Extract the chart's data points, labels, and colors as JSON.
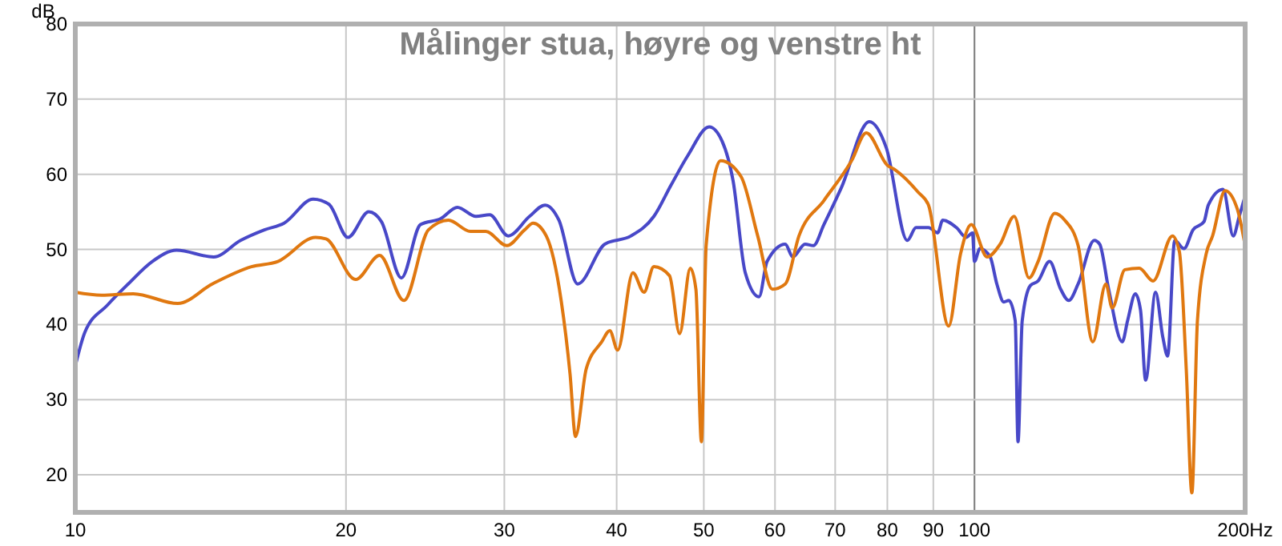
{
  "chart_data": {
    "type": "line",
    "title": "Målinger stua, høyre og venstre ht",
    "ylabel": "dB",
    "log": "x",
    "grid": true,
    "ref_lines": [
      {
        "axis": "x",
        "value": 100,
        "color": "#808080"
      }
    ],
    "marker": "none",
    "line_style": "solid",
    "xlim": [
      10,
      200
    ],
    "xticks": [
      10,
      20,
      30,
      40,
      50,
      60,
      70,
      80,
      90,
      100,
      {
        "value": 200,
        "label": "200Hz"
      }
    ],
    "ylim": [
      15,
      80
    ],
    "yticks": [
      20,
      30,
      40,
      50,
      60,
      70,
      80
    ],
    "series": [
      {
        "color": "#4848c8",
        "x": [
          10,
          10.25,
          10.86,
          11.45,
          12.18,
          12.96,
          14.25,
          15.27,
          16.23,
          17.07,
          18.39,
          19.15,
          20.1,
          21.2,
          21.9,
          23.05,
          24.2,
          25.5,
          26.6,
          27.9,
          28.9,
          30.3,
          32,
          33.3,
          34.5,
          36.2,
          38.8,
          41.5,
          44,
          46,
          48,
          50.7,
          52.4,
          53.9,
          55.6,
          57.6,
          58.8,
          61.6,
          62.8,
          64.8,
          66.2,
          68,
          71.1,
          76.4,
          79.8,
          84.2,
          86.1,
          88.9,
          91,
          92.2,
          95.5,
          97.9,
          99.5,
          100,
          101.4,
          104.1,
          105.9,
          107.8,
          109.2,
          111,
          111.8,
          113,
          115.4,
          117.7,
          121.2,
          124.7,
          127.3,
          130.4,
          135.9,
          137.8,
          141,
          146,
          148,
          151,
          153,
          155,
          159,
          162,
          164,
          167,
          171,
          175,
          180,
          182,
          189,
          194,
          197,
          200
        ],
        "values": [
          34.5,
          39,
          42.6,
          45.4,
          48.4,
          49.9,
          49,
          51.2,
          52.6,
          53.5,
          56.7,
          56,
          51.6,
          55,
          53.7,
          46.2,
          53.3,
          54.1,
          55.6,
          54.4,
          54.6,
          51.8,
          54.4,
          55.9,
          53.9,
          45.4,
          50.7,
          51.8,
          54.4,
          58.6,
          62.5,
          66.3,
          64.4,
          59.1,
          46.9,
          43.7,
          48.4,
          50.7,
          49,
          50.7,
          50.5,
          53.3,
          58.2,
          67,
          63.5,
          51.2,
          52.9,
          52.9,
          52.2,
          53.9,
          52.9,
          51.6,
          52.2,
          48.4,
          50.1,
          49,
          45.4,
          43,
          43.2,
          40.5,
          24.4,
          40.5,
          45.2,
          45.8,
          48.4,
          44.7,
          43.2,
          45.4,
          51.2,
          50.7,
          44.7,
          37.7,
          40.5,
          44.1,
          41.9,
          32.6,
          44.3,
          38.3,
          35.8,
          51.2,
          50.1,
          52.6,
          53.7,
          55.9,
          58,
          51.8,
          54.4,
          57.1
        ]
      },
      {
        "color": "#e07810",
        "x": [
          10,
          10.7,
          11.6,
          13,
          14.2,
          15.7,
          16.8,
          18.5,
          19,
          20.5,
          21.8,
          23.2,
          24.7,
          26,
          27.5,
          28.6,
          30.2,
          31.6,
          32.3,
          33.4,
          34.7,
          35.5,
          36,
          37,
          38.5,
          39.3,
          40.1,
          41.7,
          42.9,
          44,
          45.8,
          47,
          48.3,
          49,
          49.7,
          50.3,
          52.2,
          55,
          57.4,
          59.6,
          61.6,
          63.8,
          68,
          73,
          75.8,
          80,
          81.6,
          86.6,
          88.9,
          93.6,
          96.5,
          99.2,
          103.3,
          106.8,
          110.7,
          115,
          117.7,
          122.8,
          126,
          130.4,
          135.4,
          140,
          142.3,
          147,
          152.5,
          158,
          166,
          169,
          172,
          174.5,
          177,
          181,
          184,
          190,
          196,
          200
        ],
        "values": [
          44.3,
          43.9,
          44.1,
          42.8,
          45.4,
          47.7,
          48.4,
          51.6,
          51.4,
          46,
          49.2,
          43.2,
          52.6,
          53.9,
          52.4,
          52.4,
          50.5,
          52.6,
          53.5,
          51.8,
          43.2,
          33.4,
          25.1,
          34.1,
          37.7,
          39.2,
          36.6,
          46.9,
          44.3,
          47.7,
          46.5,
          38.8,
          47.5,
          44.7,
          24.4,
          50.5,
          61.8,
          59.7,
          51.8,
          44.7,
          45.4,
          51.8,
          56.5,
          61.8,
          65.5,
          61.2,
          60.6,
          57.6,
          55.9,
          39.8,
          49.4,
          53.3,
          49,
          50.7,
          54.4,
          46.2,
          48.4,
          54.8,
          53.9,
          50.5,
          37.7,
          45.4,
          42.2,
          47.3,
          47.5,
          45.8,
          51.8,
          49.7,
          34.1,
          17.6,
          40.5,
          49.4,
          51.8,
          57.8,
          55.4,
          50.5
        ]
      }
    ]
  }
}
